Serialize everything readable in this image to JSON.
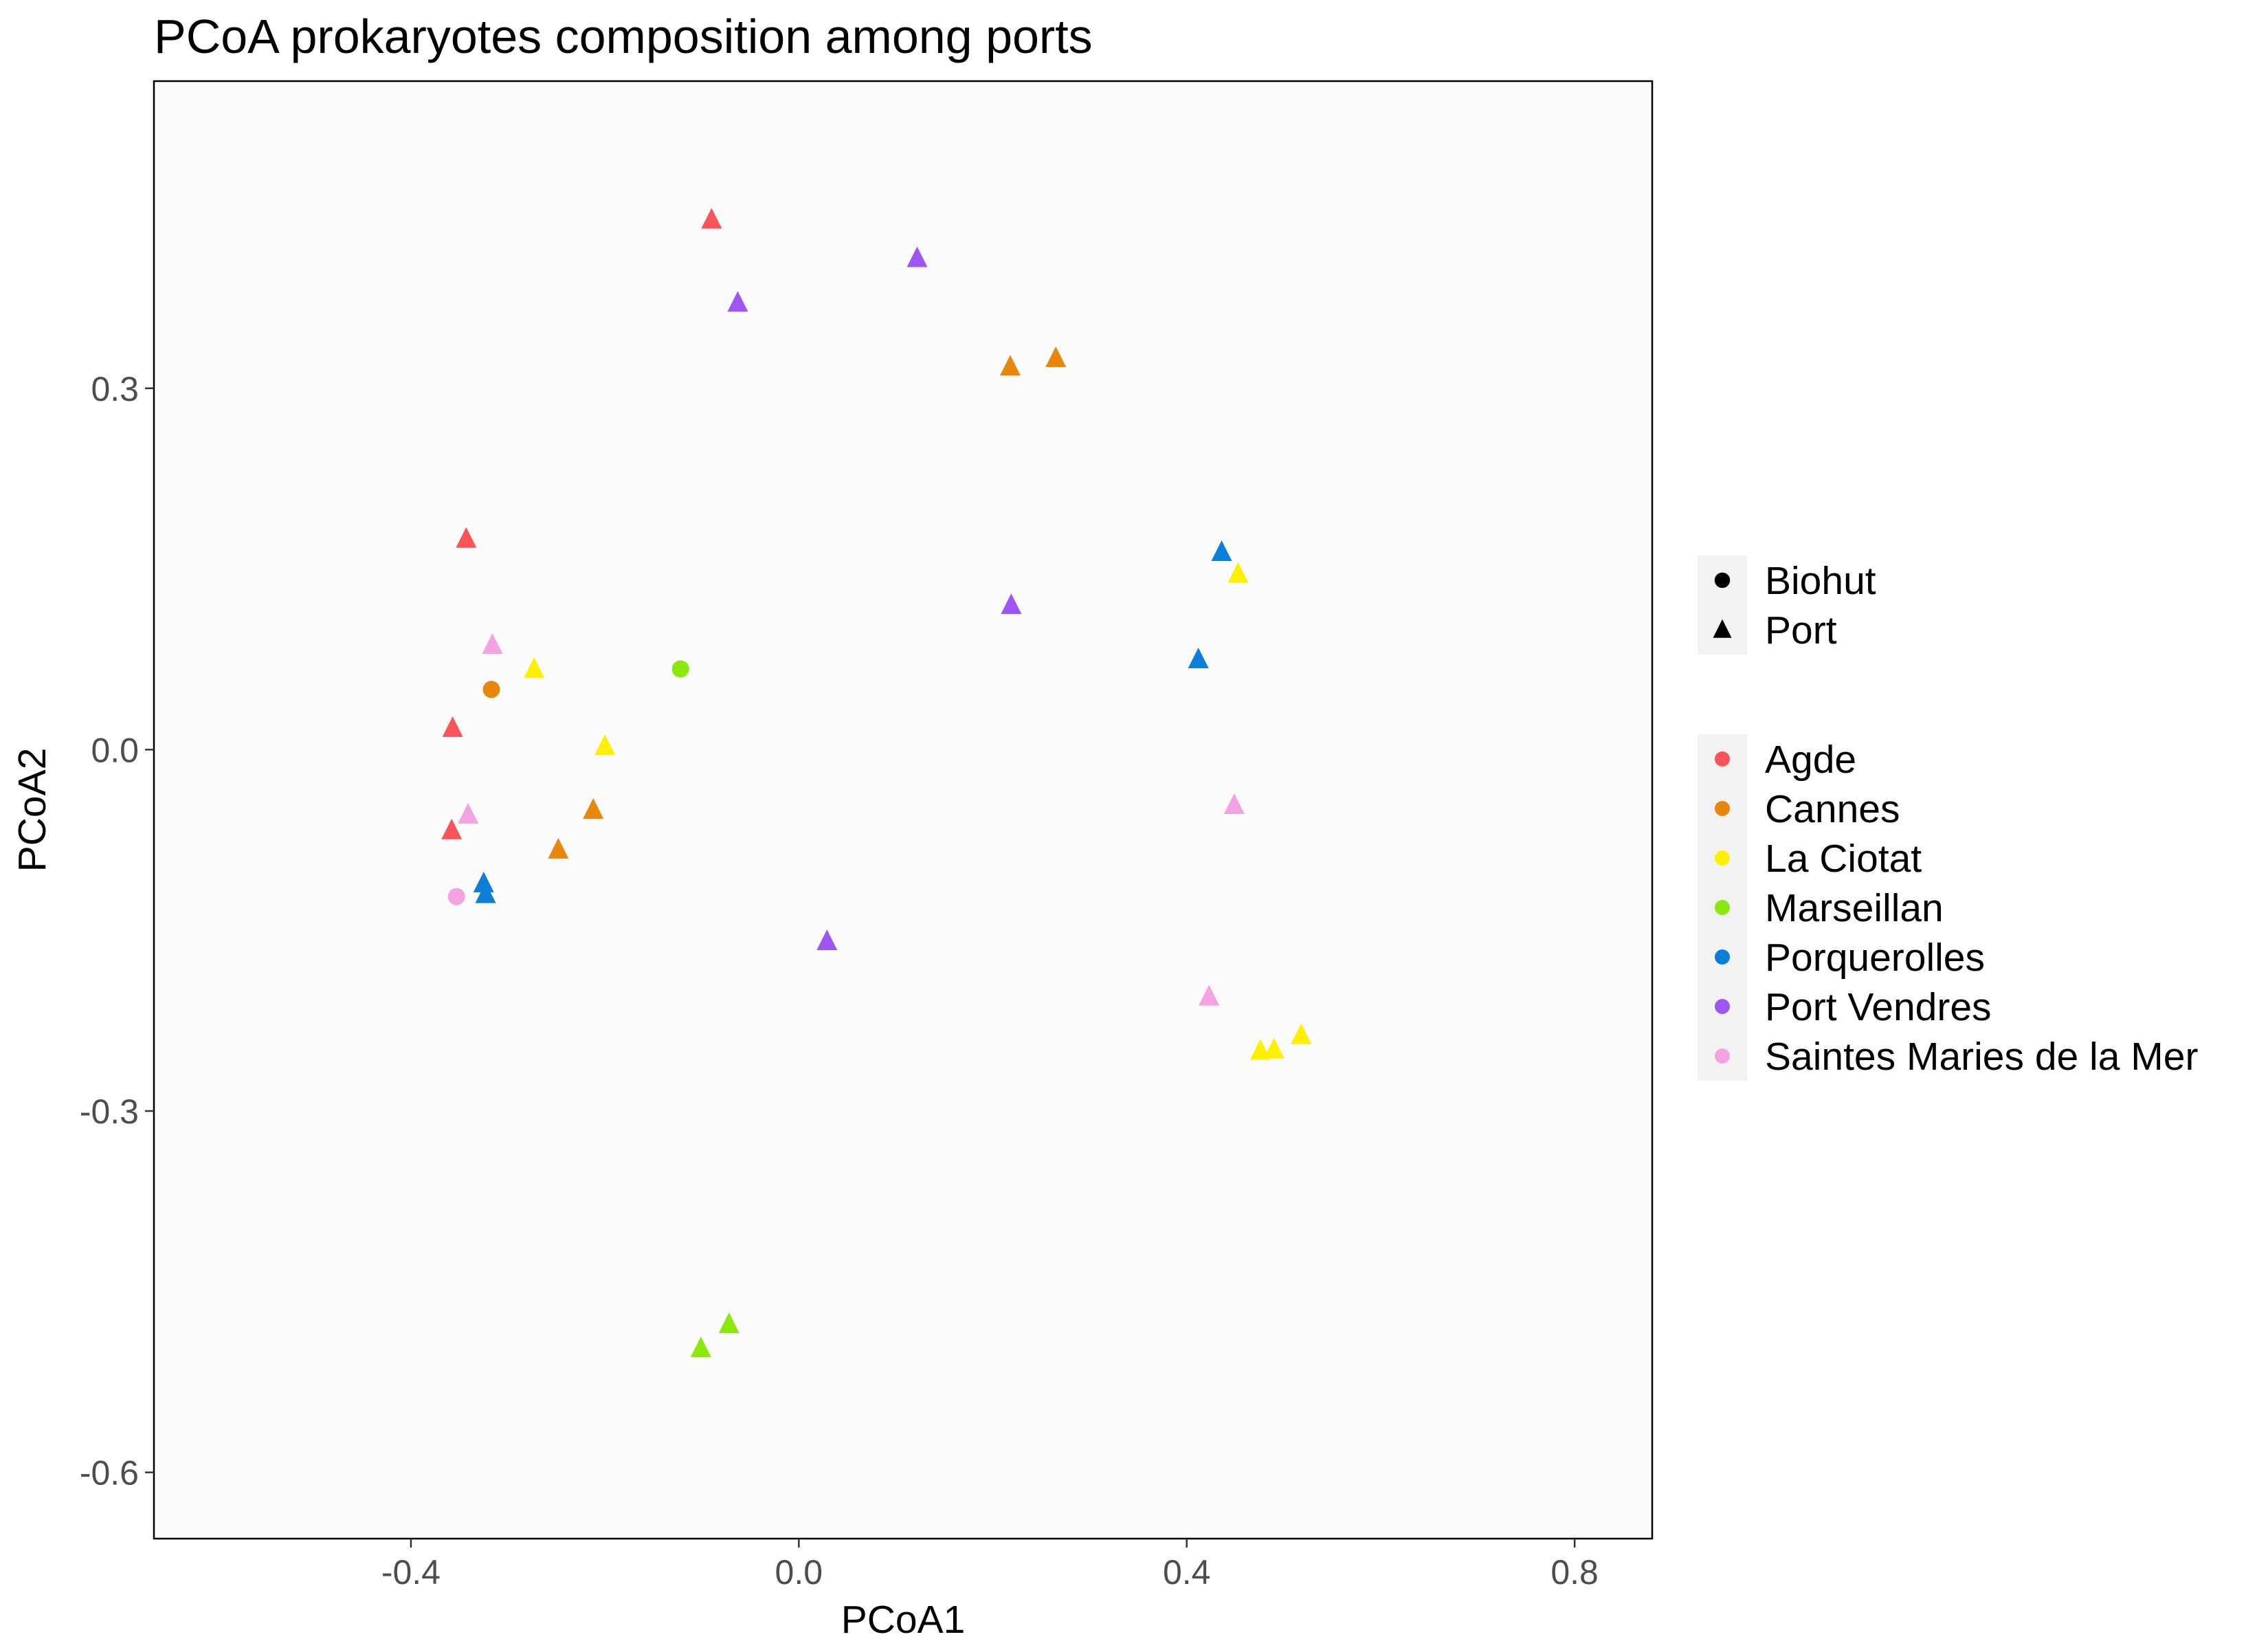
{
  "chart_data": {
    "type": "scatter",
    "title": "PCoA prokaryotes composition among ports",
    "xlabel": "PCoA1",
    "ylabel": "PCoA2",
    "xlim": [
      -0.665,
      0.88
    ],
    "ylim": [
      -0.655,
      0.555
    ],
    "xticks": [
      -0.4,
      0.0,
      0.4,
      0.8
    ],
    "xtick_labels": [
      "-0.4",
      "0.0",
      "0.4",
      "0.8"
    ],
    "yticks": [
      -0.6,
      -0.3,
      0.0,
      0.3
    ],
    "ytick_labels": [
      "-0.6",
      "-0.3",
      "0.0",
      "0.3"
    ],
    "grid": false,
    "legend_placement": "right",
    "shape_legend": [
      {
        "label": "Biohut",
        "shape": "circle"
      },
      {
        "label": "Port",
        "shape": "triangle"
      }
    ],
    "color_legend": [
      {
        "label": "Agde",
        "color": "#F8545A"
      },
      {
        "label": "Cannes",
        "color": "#E8870C"
      },
      {
        "label": "La Ciotat",
        "color": "#FFF000"
      },
      {
        "label": "Marseillan",
        "color": "#8AE80C"
      },
      {
        "label": "Porquerolles",
        "color": "#0A7ED8"
      },
      {
        "label": "Port Vendres",
        "color": "#9D56F2"
      },
      {
        "label": "Saintes Maries de la Mer",
        "color": "#F4A2E2"
      }
    ],
    "series": [
      {
        "name": "Agde",
        "points": [
          {
            "x": -0.09,
            "y": 0.44,
            "shape": "triangle"
          },
          {
            "x": -0.343,
            "y": 0.175,
            "shape": "triangle"
          },
          {
            "x": -0.357,
            "y": 0.018,
            "shape": "triangle"
          },
          {
            "x": -0.358,
            "y": -0.067,
            "shape": "triangle"
          }
        ]
      },
      {
        "name": "Cannes",
        "points": [
          {
            "x": 0.218,
            "y": 0.318,
            "shape": "triangle"
          },
          {
            "x": 0.265,
            "y": 0.325,
            "shape": "triangle"
          },
          {
            "x": -0.212,
            "y": -0.05,
            "shape": "triangle"
          },
          {
            "x": -0.248,
            "y": -0.083,
            "shape": "triangle"
          },
          {
            "x": -0.317,
            "y": 0.05,
            "shape": "circle"
          }
        ]
      },
      {
        "name": "La Ciotat",
        "points": [
          {
            "x": -0.273,
            "y": 0.067,
            "shape": "triangle"
          },
          {
            "x": -0.2,
            "y": 0.003,
            "shape": "triangle"
          },
          {
            "x": 0.453,
            "y": 0.146,
            "shape": "triangle"
          },
          {
            "x": 0.518,
            "y": -0.237,
            "shape": "triangle"
          },
          {
            "x": 0.49,
            "y": -0.249,
            "shape": "triangle"
          },
          {
            "x": 0.476,
            "y": -0.25,
            "shape": "triangle"
          }
        ]
      },
      {
        "name": "Marseillan",
        "points": [
          {
            "x": -0.122,
            "y": 0.067,
            "shape": "circle"
          },
          {
            "x": -0.072,
            "y": -0.477,
            "shape": "triangle"
          },
          {
            "x": -0.101,
            "y": -0.497,
            "shape": "triangle"
          }
        ]
      },
      {
        "name": "Porquerolles",
        "points": [
          {
            "x": 0.436,
            "y": 0.164,
            "shape": "triangle"
          },
          {
            "x": 0.412,
            "y": 0.075,
            "shape": "triangle"
          },
          {
            "x": -0.325,
            "y": -0.111,
            "shape": "triangle"
          },
          {
            "x": -0.323,
            "y": -0.12,
            "shape": "triangle"
          }
        ]
      },
      {
        "name": "Port Vendres",
        "points": [
          {
            "x": 0.122,
            "y": 0.408,
            "shape": "triangle"
          },
          {
            "x": -0.063,
            "y": 0.371,
            "shape": "triangle"
          },
          {
            "x": 0.219,
            "y": 0.12,
            "shape": "triangle"
          },
          {
            "x": 0.029,
            "y": -0.159,
            "shape": "triangle"
          }
        ]
      },
      {
        "name": "Saintes Maries de la Mer",
        "points": [
          {
            "x": -0.316,
            "y": 0.087,
            "shape": "triangle"
          },
          {
            "x": -0.341,
            "y": -0.054,
            "shape": "triangle"
          },
          {
            "x": -0.353,
            "y": -0.122,
            "shape": "circle"
          },
          {
            "x": 0.449,
            "y": -0.046,
            "shape": "triangle"
          },
          {
            "x": 0.423,
            "y": -0.205,
            "shape": "triangle"
          }
        ]
      }
    ]
  }
}
